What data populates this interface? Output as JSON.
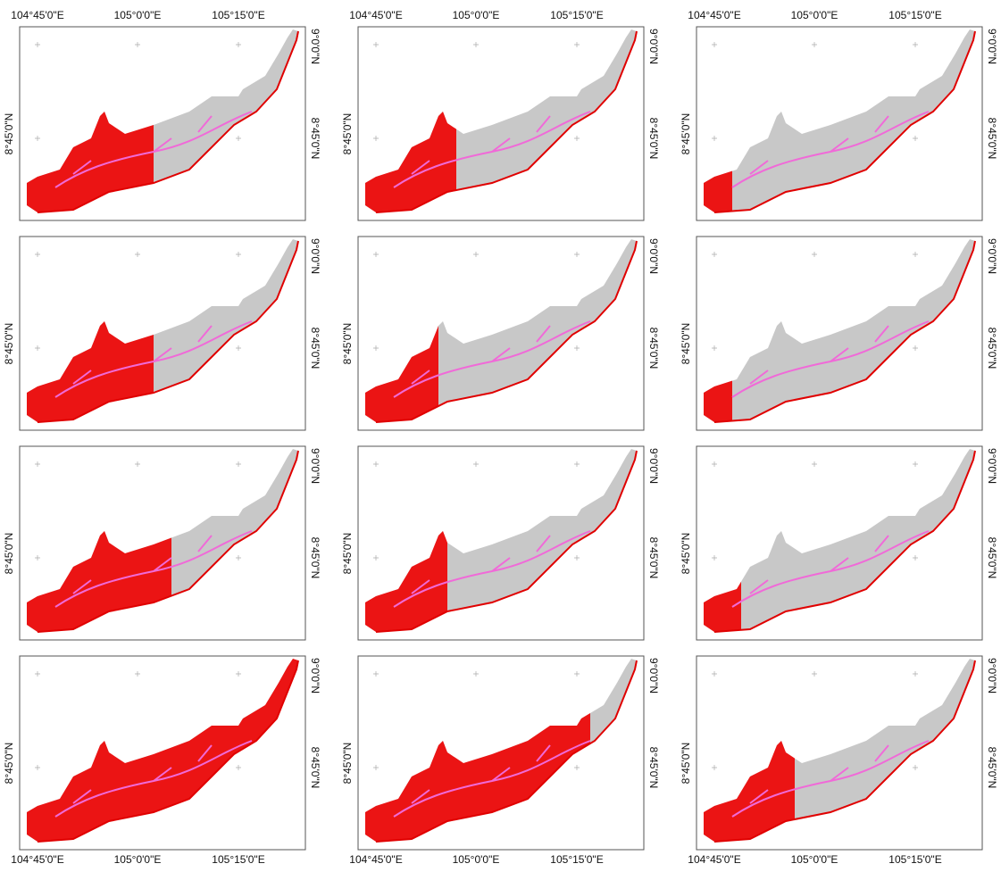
{
  "axes": {
    "lon_labels": [
      "104°45'0\"E",
      "105°0'0\"E",
      "105°15'0\"E"
    ],
    "lat_labels": [
      "8°45'0\"N",
      "9°0'0\"N"
    ]
  }
}
